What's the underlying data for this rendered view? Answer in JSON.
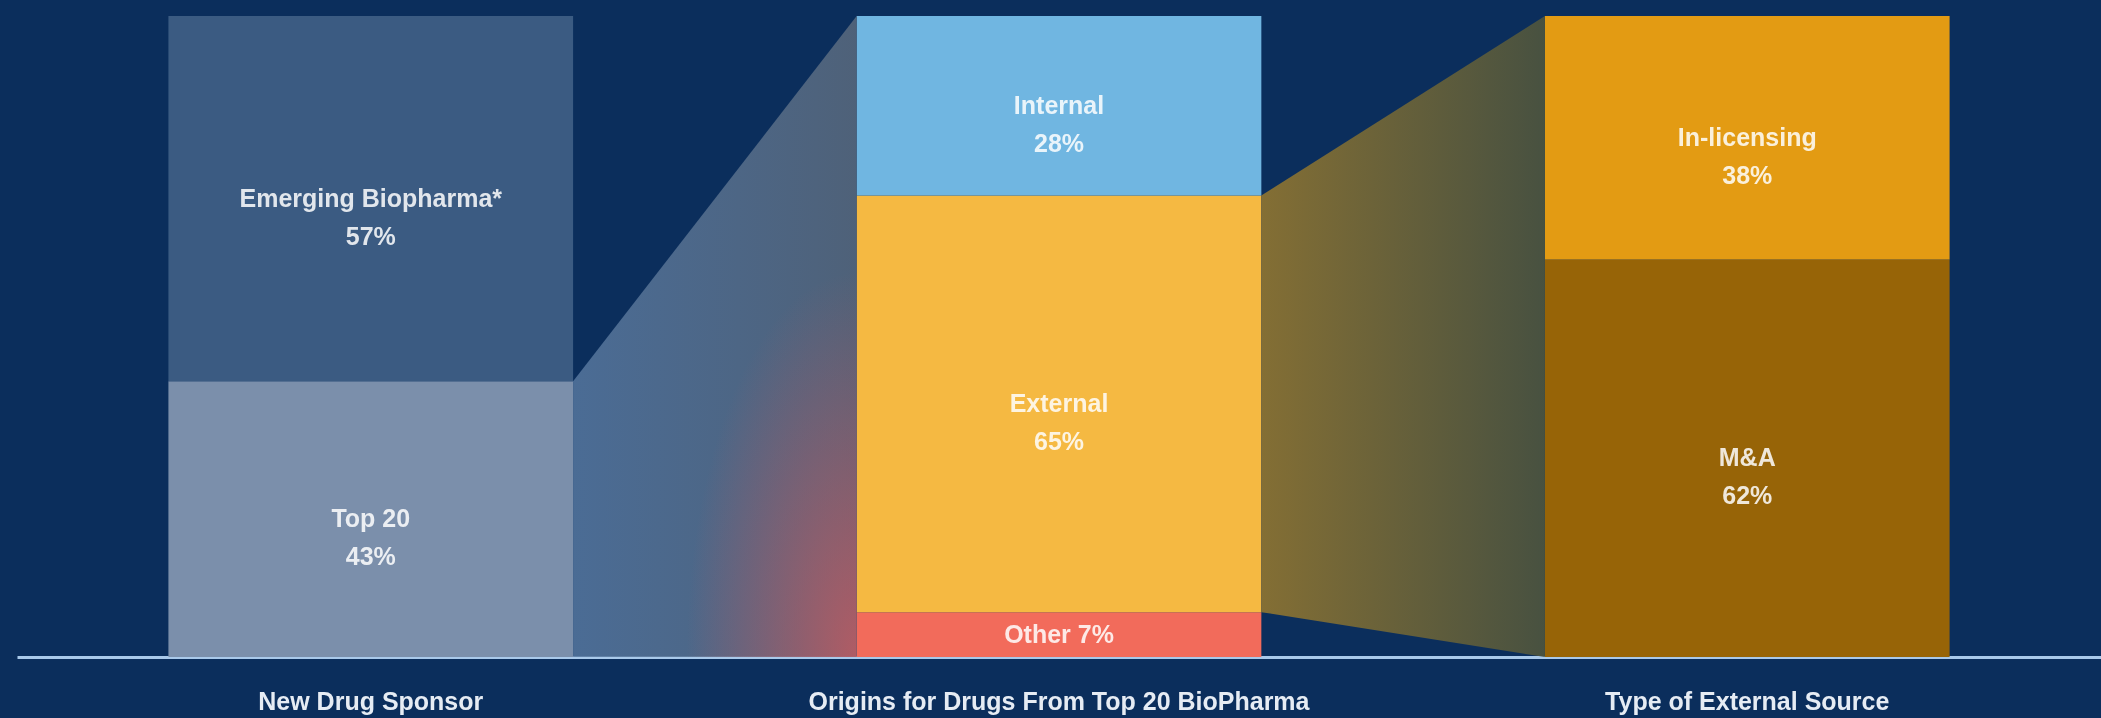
{
  "chart_data": {
    "type": "bar",
    "stacked": true,
    "tick_labels": "x",
    "categories": [
      "New Drug Sponsor",
      "Origins for Drugs From Top 20 BioPharma",
      "Type of External Source"
    ],
    "series": [
      {
        "name": "Top 20",
        "color": "#7b8fab",
        "values": [
          43,
          null,
          null
        ],
        "value_labels": [
          "43%",
          null,
          null
        ]
      },
      {
        "name": "Emerging Biopharma*",
        "color": "#3b5b82",
        "values": [
          57,
          null,
          null
        ],
        "value_labels": [
          "57%",
          null,
          null
        ]
      },
      {
        "name": "Other",
        "color": "#f26b5b",
        "values": [
          null,
          7,
          null
        ],
        "value_labels": [
          null,
          "7%",
          null
        ]
      },
      {
        "name": "External",
        "color": "#f5b942",
        "values": [
          null,
          65,
          null
        ],
        "value_labels": [
          null,
          "65%",
          null
        ]
      },
      {
        "name": "Internal",
        "color": "#70b6e1",
        "values": [
          null,
          28,
          null
        ],
        "value_labels": [
          null,
          "28%",
          null
        ]
      },
      {
        "name": "M&A",
        "color": "#976407",
        "values": [
          null,
          null,
          62
        ],
        "value_labels": [
          null,
          null,
          "62%"
        ]
      },
      {
        "name": "In-licensing",
        "color": "#e39b13",
        "values": [
          null,
          null,
          38
        ],
        "value_labels": [
          null,
          null,
          "38%"
        ]
      }
    ]
  }
}
